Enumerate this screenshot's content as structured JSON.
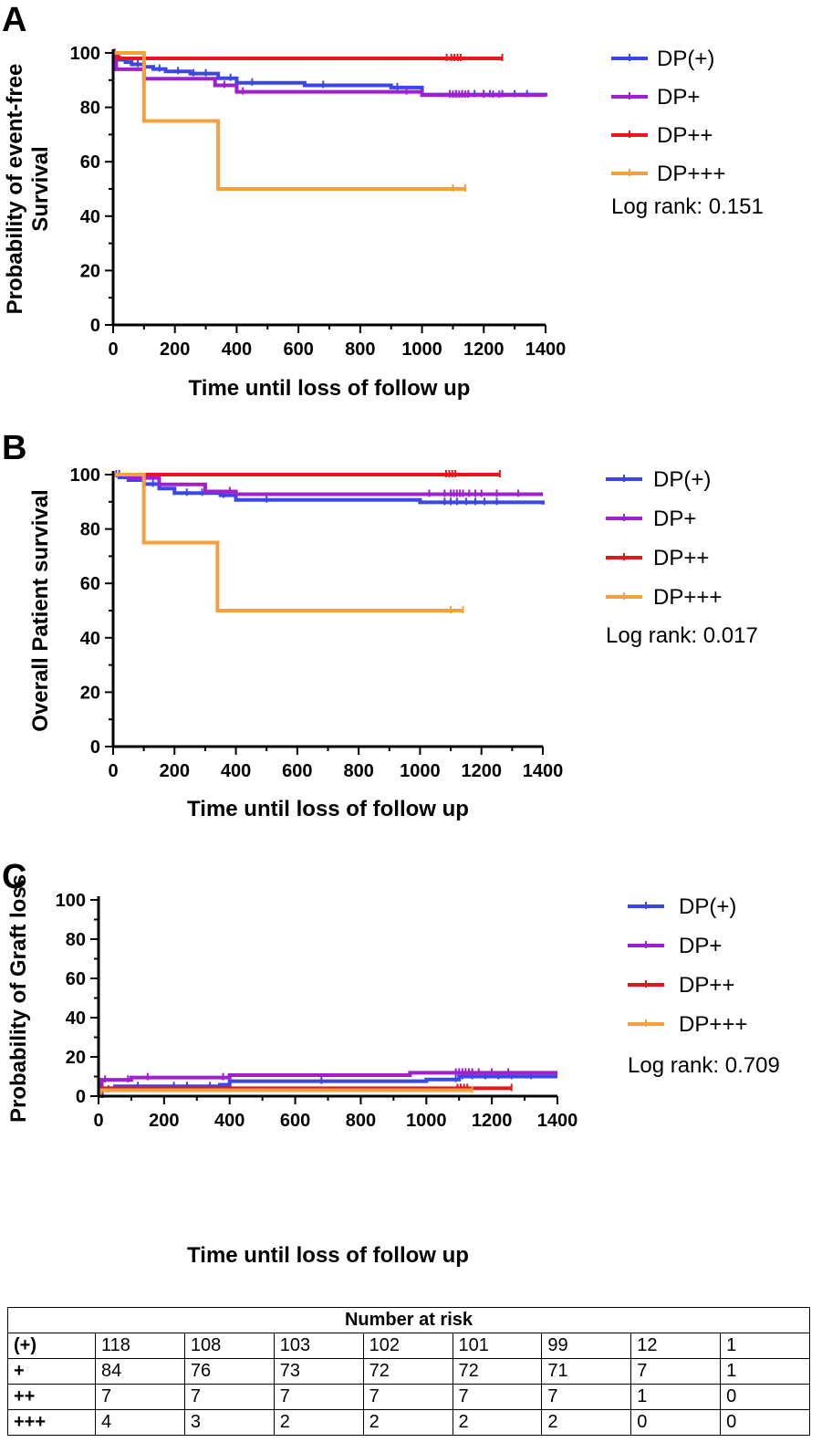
{
  "colors": {
    "DP(+)": "#3a47e8",
    "DP+": "#a020d0",
    "DP++": "#e8161a",
    "DP+++": "#f5a040",
    "axis": "#000000"
  },
  "chart_data": [
    {
      "type": "line",
      "panel": "A",
      "ylabel": [
        "Probability of event-free",
        "Survival"
      ],
      "xlabel": "Time until loss of follow up",
      "xlim": [
        0,
        1400
      ],
      "ylim": [
        0,
        100
      ],
      "xticks": [
        0,
        200,
        400,
        600,
        800,
        1000,
        1200,
        1400
      ],
      "yticks": [
        0,
        20,
        40,
        60,
        80,
        100
      ],
      "annotation": "Log rank: 0.151",
      "legend_position": "right",
      "series": [
        {
          "name": "DP(+)",
          "x": [
            0,
            5,
            10,
            20,
            40,
            60,
            100,
            130,
            170,
            250,
            340,
            400,
            620,
            900,
            1000,
            1400
          ],
          "y": [
            100,
            99.2,
            98.4,
            97.5,
            96.6,
            95.8,
            94.9,
            94.1,
            93.2,
            92.4,
            90.7,
            89,
            88.1,
            87.3,
            84.7,
            84
          ],
          "censor_x": [
            15,
            80,
            150,
            210,
            260,
            300,
            380,
            450,
            680,
            920,
            1090,
            1110,
            1130,
            1150,
            1170,
            1200,
            1220,
            1260,
            1300,
            1340
          ]
        },
        {
          "name": "DP+",
          "x": [
            0,
            10,
            100,
            330,
            400,
            1000,
            1400
          ],
          "y": [
            100,
            94,
            90.5,
            88.1,
            85.7,
            84.5,
            84
          ],
          "censor_x": [
            5,
            360,
            420,
            950,
            1090,
            1100,
            1110,
            1120,
            1130,
            1140,
            1150,
            1200,
            1230,
            1250
          ]
        },
        {
          "name": "DP++",
          "x": [
            0,
            15,
            1260
          ],
          "y": [
            100,
            98,
            98
          ],
          "censor_x": [
            1080,
            1095,
            1105,
            1115,
            1125,
            1260
          ]
        },
        {
          "name": "DP+++",
          "x": [
            0,
            100,
            340,
            1140
          ],
          "y": [
            100,
            75,
            50,
            50
          ],
          "censor_x": [
            1100,
            1140
          ]
        }
      ]
    },
    {
      "type": "line",
      "panel": "B",
      "ylabel": [
        "Overall Patient survival"
      ],
      "xlabel": "Time until loss of follow up",
      "xlim": [
        0,
        1400
      ],
      "ylim": [
        0,
        100
      ],
      "xticks": [
        0,
        200,
        400,
        600,
        800,
        1000,
        1200,
        1400
      ],
      "yticks": [
        0,
        20,
        40,
        60,
        80,
        100
      ],
      "annotation": "Log rank: 0.017",
      "legend_position": "right",
      "series": [
        {
          "name": "DP(+)",
          "x": [
            0,
            20,
            50,
            100,
            150,
            200,
            350,
            400,
            1000,
            1400
          ],
          "y": [
            100,
            99,
            98,
            96.5,
            94.9,
            93.2,
            92.4,
            90.7,
            89.8,
            89
          ],
          "censor_x": [
            10,
            130,
            240,
            290,
            360,
            500,
            1080,
            1100,
            1120,
            1150,
            1180,
            1210,
            1250
          ]
        },
        {
          "name": "DP+",
          "x": [
            0,
            50,
            150,
            300,
            400,
            1400
          ],
          "y": [
            100,
            98.8,
            96.4,
            93.8,
            92.8,
            92.8
          ],
          "censor_x": [
            20,
            380,
            1030,
            1080,
            1100,
            1110,
            1120,
            1130,
            1140,
            1160,
            1180,
            1200,
            1250,
            1320
          ]
        },
        {
          "name": "DP++",
          "x": [
            0,
            1260
          ],
          "y": [
            100,
            100
          ],
          "censor_x": [
            1085,
            1095,
            1105,
            1115,
            1260
          ]
        },
        {
          "name": "DP+++",
          "x": [
            0,
            100,
            340,
            1140
          ],
          "y": [
            100,
            75,
            50,
            50
          ],
          "censor_x": [
            1100,
            1140
          ]
        }
      ]
    },
    {
      "type": "line",
      "panel": "C",
      "ylabel": [
        "Probability of Graft loss"
      ],
      "xlabel": "Time until loss of follow up",
      "xlim": [
        0,
        1400
      ],
      "ylim": [
        0,
        100
      ],
      "xticks": [
        0,
        200,
        400,
        600,
        800,
        1000,
        1200,
        1400
      ],
      "yticks": [
        0,
        20,
        40,
        60,
        80,
        100
      ],
      "annotation": "Log rank: 0.709",
      "legend_position": "right",
      "series": [
        {
          "name": "DP(+)",
          "x": [
            0,
            10,
            50,
            370,
            400,
            1000,
            1100,
            1400
          ],
          "y": [
            0,
            3.3,
            5,
            5.8,
            7.6,
            8.5,
            10,
            10
          ],
          "censor_x": [
            30,
            120,
            230,
            270,
            340,
            680,
            1090,
            1110,
            1140,
            1180,
            1220,
            1260,
            1320
          ]
        },
        {
          "name": "DP+",
          "x": [
            0,
            10,
            100,
            400,
            950,
            1400
          ],
          "y": [
            0,
            8.3,
            9.5,
            10.7,
            11.9,
            11.9
          ],
          "censor_x": [
            20,
            90,
            150,
            380,
            1090,
            1100,
            1110,
            1120,
            1130,
            1140,
            1160,
            1200,
            1250
          ]
        },
        {
          "name": "DP++",
          "x": [
            0,
            5,
            1260
          ],
          "y": [
            0,
            4,
            4
          ],
          "censor_x": [
            1095,
            1105,
            1115,
            1125,
            1260
          ]
        },
        {
          "name": "DP+++",
          "x": [
            0,
            5,
            1140
          ],
          "y": [
            0,
            3,
            3
          ],
          "censor_x": [
            1140
          ]
        }
      ]
    }
  ],
  "risk_table": {
    "title": "Number at risk",
    "rows": [
      {
        "group": "(+)",
        "values": [
          "118",
          "108",
          "103",
          "102",
          "101",
          "99",
          "12",
          "1"
        ]
      },
      {
        "group": "+",
        "values": [
          "84",
          "76",
          "73",
          "72",
          "72",
          "71",
          "7",
          "1"
        ]
      },
      {
        "group": "++",
        "values": [
          "7",
          "7",
          "7",
          "7",
          "7",
          "7",
          "1",
          "0"
        ]
      },
      {
        "group": "+++",
        "values": [
          "4",
          "3",
          "2",
          "2",
          "2",
          "2",
          "0",
          "0"
        ]
      }
    ]
  }
}
